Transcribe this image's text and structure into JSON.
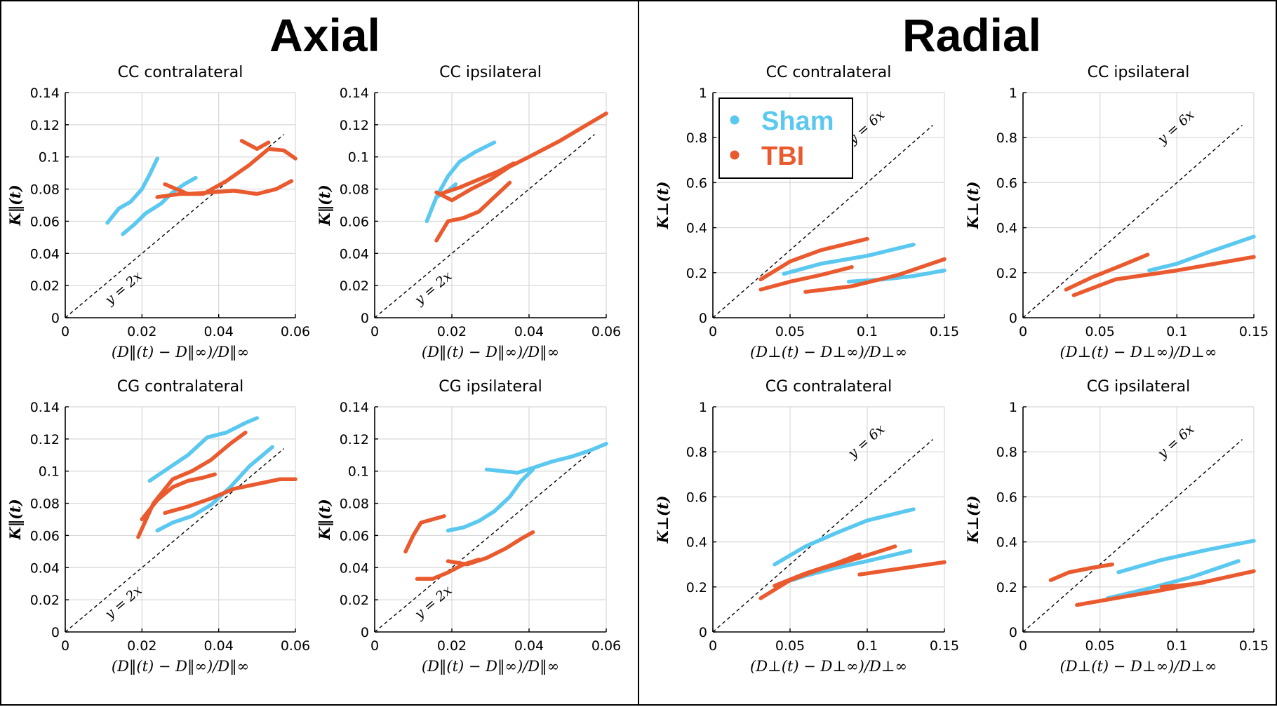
{
  "sections": {
    "axial_title": "Axial",
    "radial_title": "Radial"
  },
  "legend": {
    "items": [
      {
        "label": "Sham",
        "color": "#5BC8F0"
      },
      {
        "label": "TBI",
        "color": "#EA5A2F"
      }
    ]
  },
  "colors": {
    "sham": "#5BC8F0",
    "tbi": "#EA5A2F",
    "grid": "#d8d8d8"
  },
  "chart_data": [
    {
      "type": "line",
      "section": "Axial",
      "title": "CC contralateral",
      "xlabel": "(D‖(t) − D‖∞)/D‖∞",
      "ylabel": "K‖(t)",
      "xlim": [
        0,
        0.06
      ],
      "ylim": [
        0,
        0.14
      ],
      "xticks": [
        0,
        0.02,
        0.04,
        0.06
      ],
      "xtick_labels": [
        "0",
        "0.02",
        "0.04",
        "0.06"
      ],
      "yticks": [
        0,
        0.02,
        0.04,
        0.06,
        0.08,
        0.1,
        0.12,
        0.14
      ],
      "ytick_labels": [
        "0",
        "0.02",
        "0.04",
        "0.06",
        "0.08",
        "0.1",
        "0.12",
        "0.14"
      ],
      "reference": {
        "label": "y = 2x",
        "slope": 2
      },
      "series": [
        {
          "group": "Sham",
          "x": [
            0.011,
            0.014,
            0.017,
            0.02,
            0.022,
            0.024
          ],
          "y": [
            0.059,
            0.068,
            0.072,
            0.08,
            0.089,
            0.099
          ]
        },
        {
          "group": "Sham",
          "x": [
            0.015,
            0.018,
            0.021,
            0.025,
            0.028,
            0.031,
            0.034
          ],
          "y": [
            0.052,
            0.058,
            0.065,
            0.071,
            0.078,
            0.083,
            0.087
          ]
        },
        {
          "group": "TBI",
          "x": [
            0.024,
            0.03,
            0.036,
            0.042,
            0.048,
            0.053,
            0.057,
            0.06
          ],
          "y": [
            0.075,
            0.077,
            0.077,
            0.085,
            0.095,
            0.105,
            0.104,
            0.099
          ]
        },
        {
          "group": "TBI",
          "x": [
            0.026,
            0.032,
            0.038,
            0.044,
            0.05,
            0.055,
            0.059
          ],
          "y": [
            0.083,
            0.077,
            0.078,
            0.079,
            0.077,
            0.08,
            0.085
          ]
        },
        {
          "group": "TBI",
          "x": [
            0.046,
            0.05,
            0.053
          ],
          "y": [
            0.11,
            0.105,
            0.109
          ]
        }
      ]
    },
    {
      "type": "line",
      "section": "Axial",
      "title": "CC ipsilateral",
      "xlabel": "(D‖(t) − D‖∞)/D‖∞",
      "ylabel": "K‖(t)",
      "xlim": [
        0,
        0.06
      ],
      "ylim": [
        0,
        0.14
      ],
      "xticks": [
        0,
        0.02,
        0.04,
        0.06
      ],
      "xtick_labels": [
        "0",
        "0.02",
        "0.04",
        "0.06"
      ],
      "yticks": [
        0,
        0.02,
        0.04,
        0.06,
        0.08,
        0.1,
        0.12,
        0.14
      ],
      "ytick_labels": [
        "0",
        "0.02",
        "0.04",
        "0.06",
        "0.08",
        "0.1",
        "0.12",
        "0.14"
      ],
      "reference": {
        "label": "y = 2x",
        "slope": 2
      },
      "series": [
        {
          "group": "Sham",
          "x": [
            0.0135,
            0.016,
            0.019,
            0.022,
            0.026,
            0.031
          ],
          "y": [
            0.06,
            0.075,
            0.088,
            0.097,
            0.103,
            0.109
          ]
        },
        {
          "group": "Sham",
          "x": [
            0.016,
            0.019,
            0.021
          ],
          "y": [
            0.075,
            0.079,
            0.083
          ]
        },
        {
          "group": "TBI",
          "x": [
            0.016,
            0.02,
            0.025,
            0.03,
            0.035,
            0.04,
            0.048,
            0.055,
            0.06
          ],
          "y": [
            0.078,
            0.073,
            0.08,
            0.086,
            0.094,
            0.1,
            0.11,
            0.12,
            0.127
          ]
        },
        {
          "group": "TBI",
          "x": [
            0.016,
            0.019,
            0.023,
            0.027,
            0.031,
            0.035
          ],
          "y": [
            0.048,
            0.06,
            0.062,
            0.066,
            0.075,
            0.084
          ]
        },
        {
          "group": "TBI",
          "x": [
            0.017,
            0.022,
            0.027,
            0.032,
            0.036
          ],
          "y": [
            0.077,
            0.081,
            0.086,
            0.091,
            0.096
          ]
        }
      ]
    },
    {
      "type": "line",
      "section": "Axial",
      "title": "CG contralateral",
      "xlabel": "(D‖(t) − D‖∞)/D‖∞",
      "ylabel": "K‖(t)",
      "xlim": [
        0,
        0.06
      ],
      "ylim": [
        0,
        0.14
      ],
      "xticks": [
        0,
        0.02,
        0.04,
        0.06
      ],
      "xtick_labels": [
        "0",
        "0.02",
        "0.04",
        "0.06"
      ],
      "yticks": [
        0,
        0.02,
        0.04,
        0.06,
        0.08,
        0.1,
        0.12,
        0.14
      ],
      "ytick_labels": [
        "0",
        "0.02",
        "0.04",
        "0.06",
        "0.08",
        "0.1",
        "0.12",
        "0.14"
      ],
      "reference": {
        "label": "y = 2x",
        "slope": 2
      },
      "series": [
        {
          "group": "Sham",
          "x": [
            0.022,
            0.027,
            0.032,
            0.037,
            0.042,
            0.047,
            0.05
          ],
          "y": [
            0.094,
            0.102,
            0.11,
            0.121,
            0.124,
            0.13,
            0.133
          ]
        },
        {
          "group": "Sham",
          "x": [
            0.024,
            0.028,
            0.033,
            0.038,
            0.043,
            0.048,
            0.054
          ],
          "y": [
            0.063,
            0.068,
            0.072,
            0.079,
            0.09,
            0.103,
            0.115
          ]
        },
        {
          "group": "TBI",
          "x": [
            0.019,
            0.023,
            0.028,
            0.033,
            0.038,
            0.043,
            0.047
          ],
          "y": [
            0.059,
            0.08,
            0.095,
            0.1,
            0.107,
            0.117,
            0.124
          ]
        },
        {
          "group": "TBI",
          "x": [
            0.02,
            0.024,
            0.028,
            0.032,
            0.036,
            0.039
          ],
          "y": [
            0.07,
            0.082,
            0.09,
            0.094,
            0.096,
            0.098
          ]
        },
        {
          "group": "TBI",
          "x": [
            0.026,
            0.032,
            0.038,
            0.044,
            0.05,
            0.056,
            0.06
          ],
          "y": [
            0.074,
            0.078,
            0.083,
            0.089,
            0.092,
            0.095,
            0.095
          ]
        }
      ]
    },
    {
      "type": "line",
      "section": "Axial",
      "title": "CG ipsilateral",
      "xlabel": "(D‖(t) − D‖∞)/D‖∞",
      "ylabel": "K‖(t)",
      "xlim": [
        0,
        0.06
      ],
      "ylim": [
        0,
        0.14
      ],
      "xticks": [
        0,
        0.02,
        0.04,
        0.06
      ],
      "xtick_labels": [
        "0",
        "0.02",
        "0.04",
        "0.06"
      ],
      "yticks": [
        0,
        0.02,
        0.04,
        0.06,
        0.08,
        0.1,
        0.12,
        0.14
      ],
      "ytick_labels": [
        "0",
        "0.02",
        "0.04",
        "0.06",
        "0.08",
        "0.1",
        "0.12",
        "0.14"
      ],
      "reference": {
        "label": "y = 2x",
        "slope": 2
      },
      "series": [
        {
          "group": "Sham",
          "x": [
            0.029,
            0.033,
            0.037,
            0.041,
            0.046,
            0.051,
            0.056,
            0.06
          ],
          "y": [
            0.101,
            0.1,
            0.099,
            0.102,
            0.106,
            0.109,
            0.113,
            0.117
          ]
        },
        {
          "group": "Sham",
          "x": [
            0.019,
            0.023,
            0.027,
            0.031,
            0.035,
            0.038,
            0.041
          ],
          "y": [
            0.063,
            0.065,
            0.069,
            0.075,
            0.084,
            0.094,
            0.101
          ]
        },
        {
          "group": "TBI",
          "x": [
            0.008,
            0.01,
            0.012,
            0.015,
            0.018
          ],
          "y": [
            0.05,
            0.06,
            0.068,
            0.07,
            0.072
          ]
        },
        {
          "group": "TBI",
          "x": [
            0.011,
            0.015,
            0.019,
            0.023,
            0.027
          ],
          "y": [
            0.033,
            0.033,
            0.037,
            0.042,
            0.045
          ]
        },
        {
          "group": "TBI",
          "x": [
            0.019,
            0.024,
            0.029,
            0.034,
            0.038,
            0.041
          ],
          "y": [
            0.044,
            0.042,
            0.046,
            0.052,
            0.058,
            0.062
          ]
        }
      ]
    },
    {
      "type": "line",
      "section": "Radial",
      "title": "CC contralateral",
      "xlabel": "(D⊥(t) − D⊥∞)/D⊥∞",
      "ylabel": "K⊥(t)",
      "xlim": [
        0,
        0.15
      ],
      "ylim": [
        0,
        1
      ],
      "xticks": [
        0,
        0.05,
        0.1,
        0.15
      ],
      "xtick_labels": [
        "0",
        "0.05",
        "0.1",
        "0.15"
      ],
      "yticks": [
        0,
        0.2,
        0.4,
        0.6,
        0.8,
        1
      ],
      "ytick_labels": [
        "0",
        "0.2",
        "0.4",
        "0.6",
        "0.8",
        "1"
      ],
      "reference": {
        "label": "y = 6x",
        "slope": 6
      },
      "series": [
        {
          "group": "Sham",
          "x": [
            0.046,
            0.07,
            0.1,
            0.13
          ],
          "y": [
            0.195,
            0.24,
            0.275,
            0.325
          ]
        },
        {
          "group": "Sham",
          "x": [
            0.088,
            0.11,
            0.13,
            0.15
          ],
          "y": [
            0.16,
            0.17,
            0.185,
            0.21
          ]
        },
        {
          "group": "TBI",
          "x": [
            0.031,
            0.05,
            0.07,
            0.1
          ],
          "y": [
            0.17,
            0.25,
            0.3,
            0.35
          ]
        },
        {
          "group": "TBI",
          "x": [
            0.031,
            0.05,
            0.07,
            0.09
          ],
          "y": [
            0.125,
            0.16,
            0.19,
            0.225
          ]
        },
        {
          "group": "TBI",
          "x": [
            0.06,
            0.09,
            0.12,
            0.15
          ],
          "y": [
            0.115,
            0.14,
            0.19,
            0.26
          ]
        }
      ]
    },
    {
      "type": "line",
      "section": "Radial",
      "title": "CC ipsilateral",
      "xlabel": "(D⊥(t) − D⊥∞)/D⊥∞",
      "ylabel": "K⊥(t)",
      "xlim": [
        0,
        0.15
      ],
      "ylim": [
        0,
        1
      ],
      "xticks": [
        0,
        0.05,
        0.1,
        0.15
      ],
      "xtick_labels": [
        "0",
        "0.05",
        "0.1",
        "0.15"
      ],
      "yticks": [
        0,
        0.2,
        0.4,
        0.6,
        0.8,
        1
      ],
      "ytick_labels": [
        "0",
        "0.2",
        "0.4",
        "0.6",
        "0.8",
        "1"
      ],
      "reference": {
        "label": "y = 6x",
        "slope": 6
      },
      "series": [
        {
          "group": "Sham",
          "x": [
            0.082,
            0.1,
            0.12,
            0.15
          ],
          "y": [
            0.21,
            0.24,
            0.29,
            0.36
          ]
        },
        {
          "group": "TBI",
          "x": [
            0.028,
            0.045,
            0.065,
            0.081
          ],
          "y": [
            0.125,
            0.18,
            0.235,
            0.28
          ]
        },
        {
          "group": "TBI",
          "x": [
            0.033,
            0.06,
            0.1,
            0.15
          ],
          "y": [
            0.1,
            0.17,
            0.21,
            0.27
          ]
        }
      ]
    },
    {
      "type": "line",
      "section": "Radial",
      "title": "CG contralateral",
      "xlabel": "(D⊥(t) − D⊥∞)/D⊥∞",
      "ylabel": "K⊥(t)",
      "xlim": [
        0,
        0.15
      ],
      "ylim": [
        0,
        1
      ],
      "xticks": [
        0,
        0.05,
        0.1,
        0.15
      ],
      "xtick_labels": [
        "0",
        "0.05",
        "0.1",
        "0.15"
      ],
      "yticks": [
        0,
        0.2,
        0.4,
        0.6,
        0.8,
        1
      ],
      "ytick_labels": [
        "0",
        "0.2",
        "0.4",
        "0.6",
        "0.8",
        "1"
      ],
      "reference": {
        "label": "y = 6x",
        "slope": 6
      },
      "series": [
        {
          "group": "Sham",
          "x": [
            0.04,
            0.06,
            0.08,
            0.1,
            0.13
          ],
          "y": [
            0.3,
            0.38,
            0.44,
            0.495,
            0.545
          ]
        },
        {
          "group": "Sham",
          "x": [
            0.042,
            0.06,
            0.08,
            0.1,
            0.128
          ],
          "y": [
            0.21,
            0.25,
            0.285,
            0.315,
            0.36
          ]
        },
        {
          "group": "TBI",
          "x": [
            0.031,
            0.05,
            0.07,
            0.095,
            0.118
          ],
          "y": [
            0.15,
            0.23,
            0.28,
            0.33,
            0.38
          ]
        },
        {
          "group": "TBI",
          "x": [
            0.04,
            0.06,
            0.08,
            0.095
          ],
          "y": [
            0.205,
            0.26,
            0.305,
            0.345
          ]
        },
        {
          "group": "TBI",
          "x": [
            0.095,
            0.115,
            0.135,
            0.15
          ],
          "y": [
            0.255,
            0.275,
            0.295,
            0.31
          ]
        }
      ]
    },
    {
      "type": "line",
      "section": "Radial",
      "title": "CG ipsilateral",
      "xlabel": "(D⊥(t) − D⊥∞)/D⊥∞",
      "ylabel": "K⊥(t)",
      "xlim": [
        0,
        0.15
      ],
      "ylim": [
        0,
        1
      ],
      "xticks": [
        0,
        0.05,
        0.1,
        0.15
      ],
      "xtick_labels": [
        "0",
        "0.05",
        "0.1",
        "0.15"
      ],
      "yticks": [
        0,
        0.2,
        0.4,
        0.6,
        0.8,
        1
      ],
      "ytick_labels": [
        "0",
        "0.2",
        "0.4",
        "0.6",
        "0.8",
        "1"
      ],
      "reference": {
        "label": "y = 6x",
        "slope": 6
      },
      "series": [
        {
          "group": "Sham",
          "x": [
            0.062,
            0.09,
            0.12,
            0.15
          ],
          "y": [
            0.265,
            0.32,
            0.365,
            0.405
          ]
        },
        {
          "group": "Sham",
          "x": [
            0.055,
            0.08,
            0.11,
            0.14
          ],
          "y": [
            0.15,
            0.19,
            0.245,
            0.315
          ]
        },
        {
          "group": "TBI",
          "x": [
            0.018,
            0.03,
            0.045,
            0.058
          ],
          "y": [
            0.23,
            0.265,
            0.285,
            0.3
          ]
        },
        {
          "group": "TBI",
          "x": [
            0.035,
            0.06,
            0.09,
            0.12,
            0.15
          ],
          "y": [
            0.12,
            0.15,
            0.185,
            0.225,
            0.27
          ]
        },
        {
          "group": "TBI",
          "x": [
            0.09,
            0.1,
            0.11,
            0.118
          ],
          "y": [
            0.2,
            0.205,
            0.212,
            0.22
          ]
        }
      ]
    }
  ]
}
